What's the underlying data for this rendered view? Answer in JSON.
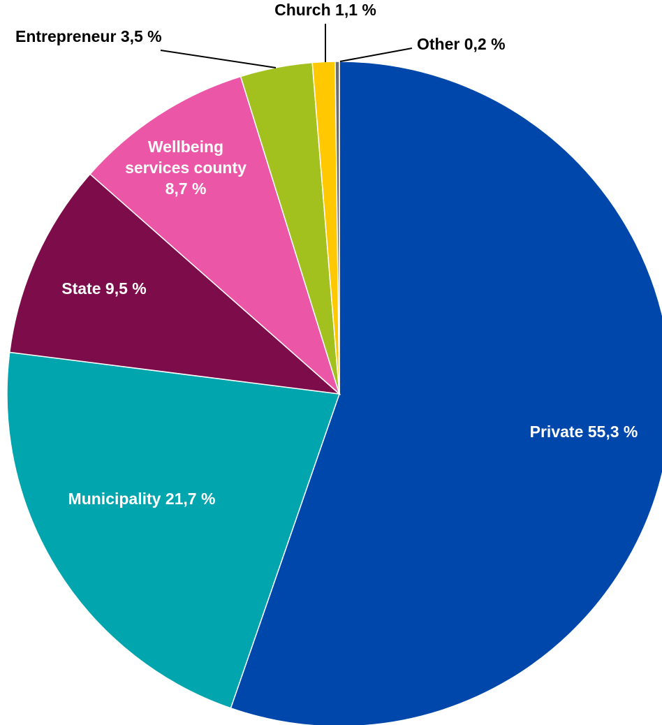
{
  "chart_data": {
    "type": "pie",
    "title": "",
    "start_angle_deg": 0,
    "direction": "clockwise",
    "slices": [
      {
        "label": "Private 55,3 %",
        "value": 55.3,
        "color": "#0047AB",
        "label_color": "#ffffff",
        "label_style": "inside"
      },
      {
        "label": "Municipality 21,7 %",
        "value": 21.7,
        "color": "#00A5AE",
        "label_color": "#ffffff",
        "label_style": "inside"
      },
      {
        "label": "State 9,5 %",
        "value": 9.5,
        "color": "#7D0C4A",
        "label_color": "#ffffff",
        "label_style": "inside"
      },
      {
        "label": "Wellbeing services county 8,7 %",
        "label_lines": [
          "Wellbeing",
          "services county",
          "8,7 %"
        ],
        "value": 8.7,
        "color": "#EB57A6",
        "label_color": "#ffffff",
        "label_style": "inside"
      },
      {
        "label": "Entrepreneur 3,5 %",
        "value": 3.5,
        "color": "#A2C01E",
        "label_color": "#000000",
        "label_style": "outside"
      },
      {
        "label": "Church 1,1 %",
        "value": 1.1,
        "color": "#FFC800",
        "label_color": "#000000",
        "label_style": "outside"
      },
      {
        "label": "Other 0,2 %",
        "value": 0.2,
        "color": "#6E6E6E",
        "label_color": "#000000",
        "label_style": "outside"
      }
    ]
  }
}
